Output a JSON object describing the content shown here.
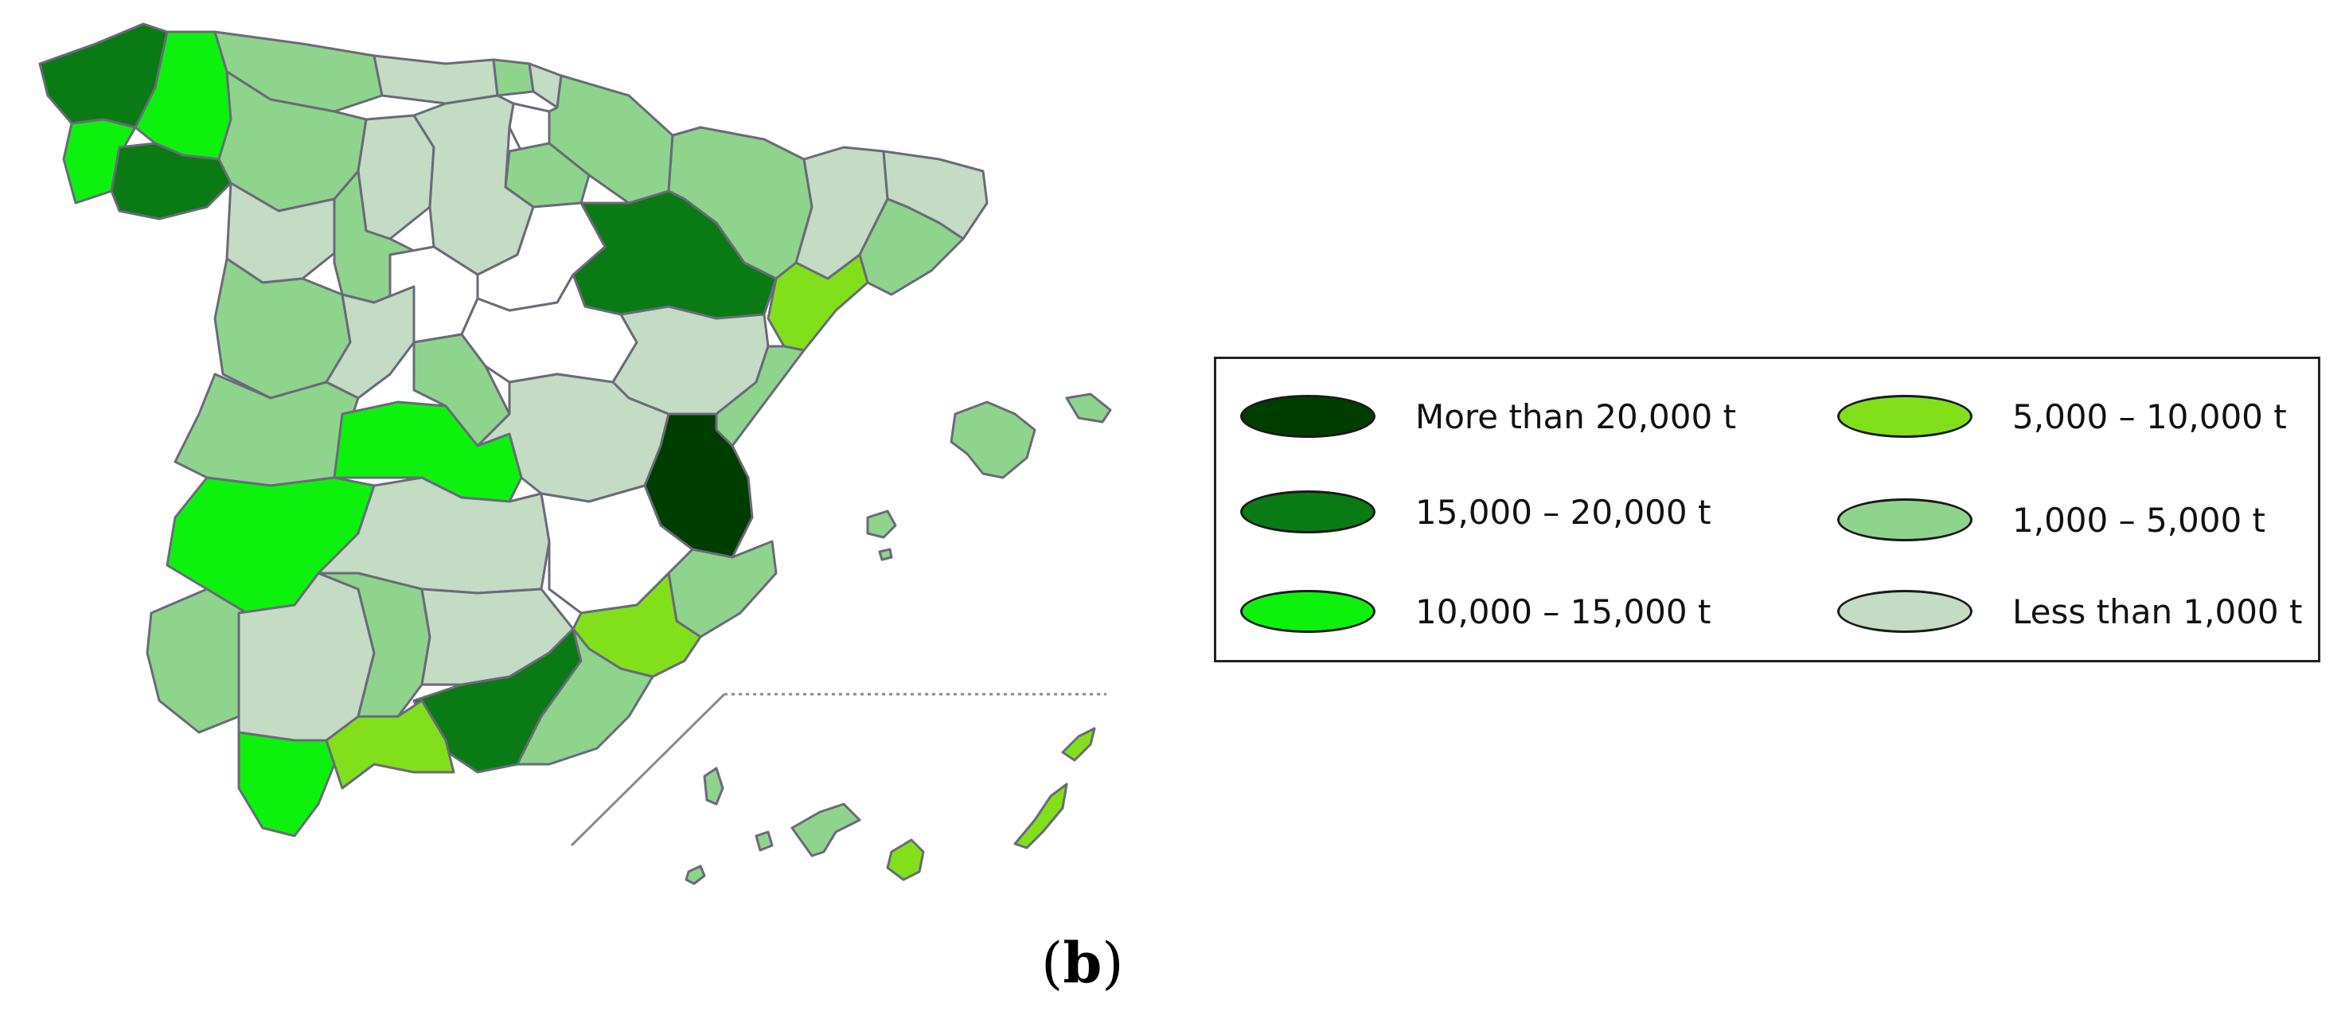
{
  "panel_label": {
    "open": "(",
    "letter": "b",
    "close": ")"
  },
  "colors": {
    "more_than_20000": "#003d00",
    "15000_20000": "#0a7a14",
    "10000_15000": "#0df20d",
    "5000_10000": "#82e01a",
    "1000_5000": "#8fd48c",
    "less_than_1000": "#c3dcc3",
    "no_data": "#ffffff",
    "border": "#6a6a7a"
  },
  "legend": {
    "items": [
      {
        "label": "More than 20,000 t",
        "color": "#003d00"
      },
      {
        "label": "15,000 – 20,000 t",
        "color": "#0a7a14"
      },
      {
        "label": "10,000 – 15,000 t",
        "color": "#0df20d"
      },
      {
        "label": "5,000 – 10,000 t",
        "color": "#82e01a"
      },
      {
        "label": "1,000 – 5,000 t",
        "color": "#8fd48c"
      },
      {
        "label": "Less than 1,000 t",
        "color": "#c3dcc3"
      }
    ]
  }
}
